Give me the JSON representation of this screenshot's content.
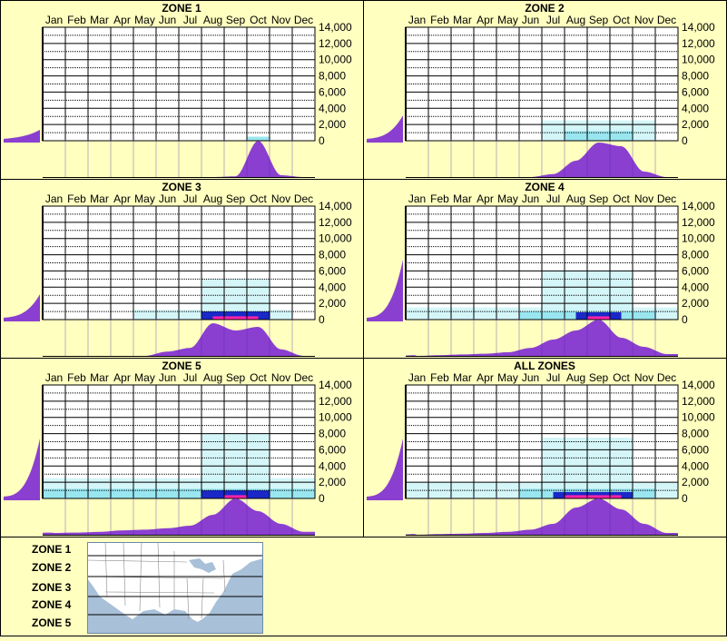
{
  "months": [
    "Jan",
    "Feb",
    "Mar",
    "Apr",
    "May",
    "Jun",
    "Jul",
    "Aug",
    "Sep",
    "Oct",
    "Nov",
    "Dec"
  ],
  "y_ticks": [
    "14,000",
    "12,000",
    "10,000",
    "8,000",
    "6,000",
    "4,000",
    "2,000",
    "0"
  ],
  "colors": {
    "background": "#ffffc0",
    "distribution": "#8a3fd0",
    "low_density": "#ccf5f8",
    "mid_density": "#99e6f0",
    "high_density": "#1a28c8",
    "peak_density": "#ff22aa",
    "grid": "#000000",
    "map_water": "#a8c0d8",
    "map_land": "#ffffff"
  },
  "chart_data": [
    {
      "type": "heatmap",
      "title": "ZONE 1",
      "xlabel": "",
      "ylabel": "",
      "x": [
        "Jan",
        "Feb",
        "Mar",
        "Apr",
        "May",
        "Jun",
        "Jul",
        "Aug",
        "Sep",
        "Oct",
        "Nov",
        "Dec"
      ],
      "ylim": [
        0,
        14000
      ],
      "month_distribution": [
        0,
        0,
        0,
        0,
        0,
        0,
        0,
        0,
        0.02,
        1.0,
        0.05,
        0
      ],
      "elevation_distribution_side": "low",
      "cells": [
        {
          "month_start": 9.0,
          "month_end": 10.0,
          "y_from": 0,
          "y_to": 500,
          "level": 2
        }
      ]
    },
    {
      "type": "heatmap",
      "title": "ZONE 2",
      "xlabel": "",
      "ylabel": "",
      "x": [
        "Jan",
        "Feb",
        "Mar",
        "Apr",
        "May",
        "Jun",
        "Jul",
        "Aug",
        "Sep",
        "Oct",
        "Nov",
        "Dec"
      ],
      "ylim": [
        0,
        14000
      ],
      "month_distribution": [
        0,
        0,
        0,
        0,
        0,
        0,
        0.08,
        0.45,
        0.95,
        0.85,
        0.15,
        0
      ],
      "elevation_distribution_side": "medium",
      "cells": [
        {
          "month_start": 6.0,
          "month_end": 11.0,
          "y_from": 0,
          "y_to": 2500,
          "level": 1
        },
        {
          "month_start": 7.0,
          "month_end": 10.0,
          "y_from": 0,
          "y_to": 1200,
          "level": 2
        }
      ]
    },
    {
      "type": "heatmap",
      "title": "ZONE 3",
      "xlabel": "",
      "ylabel": "",
      "x": [
        "Jan",
        "Feb",
        "Mar",
        "Apr",
        "May",
        "Jun",
        "Jul",
        "Aug",
        "Sep",
        "Oct",
        "Nov",
        "Dec"
      ],
      "ylim": [
        0,
        14000
      ],
      "month_distribution": [
        0,
        0,
        0,
        0,
        0,
        0.12,
        0.22,
        0.9,
        0.7,
        0.8,
        0.18,
        0
      ],
      "elevation_distribution_side": "medium",
      "cells": [
        {
          "month_start": 4.0,
          "month_end": 11.0,
          "y_from": 0,
          "y_to": 1200,
          "level": 1
        },
        {
          "month_start": 7.0,
          "month_end": 10.0,
          "y_from": 0,
          "y_to": 5000,
          "level": 1
        },
        {
          "month_start": 7.0,
          "month_end": 10.0,
          "y_from": 0,
          "y_to": 1000,
          "level": 3
        },
        {
          "month_start": 7.5,
          "month_end": 9.5,
          "y_from": 0,
          "y_to": 400,
          "level": 4
        }
      ]
    },
    {
      "type": "heatmap",
      "title": "ZONE 4",
      "xlabel": "",
      "ylabel": "",
      "x": [
        "Jan",
        "Feb",
        "Mar",
        "Apr",
        "May",
        "Jun",
        "Jul",
        "Aug",
        "Sep",
        "Oct",
        "Nov",
        "Dec"
      ],
      "ylim": [
        0,
        14000
      ],
      "month_distribution": [
        0,
        0.02,
        0.04,
        0.06,
        0.1,
        0.22,
        0.45,
        0.7,
        1.0,
        0.5,
        0.25,
        0.05
      ],
      "elevation_distribution_side": "high",
      "cells": [
        {
          "month_start": 0.0,
          "month_end": 12.0,
          "y_from": 0,
          "y_to": 1500,
          "level": 1
        },
        {
          "month_start": 6.0,
          "month_end": 10.0,
          "y_from": 0,
          "y_to": 6000,
          "level": 1
        },
        {
          "month_start": 5.0,
          "month_end": 11.0,
          "y_from": 0,
          "y_to": 1000,
          "level": 2
        },
        {
          "month_start": 7.5,
          "month_end": 9.5,
          "y_from": 0,
          "y_to": 900,
          "level": 3
        },
        {
          "month_start": 8.0,
          "month_end": 9.0,
          "y_from": 0,
          "y_to": 400,
          "level": 4
        }
      ]
    },
    {
      "type": "heatmap",
      "title": "ZONE 5",
      "xlabel": "",
      "ylabel": "",
      "x": [
        "Jan",
        "Feb",
        "Mar",
        "Apr",
        "May",
        "Jun",
        "Jul",
        "Aug",
        "Sep",
        "Oct",
        "Nov",
        "Dec"
      ],
      "ylim": [
        0,
        14000
      ],
      "month_distribution": [
        0.05,
        0.06,
        0.08,
        0.12,
        0.14,
        0.18,
        0.25,
        0.55,
        1.0,
        0.65,
        0.3,
        0.08
      ],
      "elevation_distribution_side": "high",
      "cells": [
        {
          "month_start": 0.0,
          "month_end": 12.0,
          "y_from": 0,
          "y_to": 2500,
          "level": 1
        },
        {
          "month_start": 7.0,
          "month_end": 10.0,
          "y_from": 0,
          "y_to": 8000,
          "level": 1
        },
        {
          "month_start": 0.0,
          "month_end": 12.0,
          "y_from": 0,
          "y_to": 1200,
          "level": 2
        },
        {
          "month_start": 7.0,
          "month_end": 10.0,
          "y_from": 0,
          "y_to": 1000,
          "level": 3
        },
        {
          "month_start": 8.0,
          "month_end": 9.0,
          "y_from": 0,
          "y_to": 400,
          "level": 4
        }
      ]
    },
    {
      "type": "heatmap",
      "title": "ALL ZONES",
      "xlabel": "",
      "ylabel": "",
      "x": [
        "Jan",
        "Feb",
        "Mar",
        "Apr",
        "May",
        "Jun",
        "Jul",
        "Aug",
        "Sep",
        "Oct",
        "Nov",
        "Dec"
      ],
      "ylim": [
        0,
        14000
      ],
      "month_distribution": [
        0,
        0.02,
        0.03,
        0.05,
        0.08,
        0.14,
        0.3,
        0.75,
        1.0,
        0.7,
        0.3,
        0.05
      ],
      "elevation_distribution_side": "high",
      "cells": [
        {
          "month_start": 0.0,
          "month_end": 12.0,
          "y_from": 0,
          "y_to": 2000,
          "level": 1
        },
        {
          "month_start": 6.0,
          "month_end": 10.0,
          "y_from": 0,
          "y_to": 7500,
          "level": 1
        },
        {
          "month_start": 5.0,
          "month_end": 11.0,
          "y_from": 0,
          "y_to": 1200,
          "level": 2
        },
        {
          "month_start": 6.5,
          "month_end": 10.0,
          "y_from": 0,
          "y_to": 800,
          "level": 3
        },
        {
          "month_start": 7.0,
          "month_end": 9.5,
          "y_from": 0,
          "y_to": 400,
          "level": 4
        }
      ]
    }
  ],
  "legend": {
    "labels": [
      "ZONE 1",
      "ZONE 2",
      "ZONE 3",
      "ZONE 4",
      "ZONE 5"
    ]
  }
}
